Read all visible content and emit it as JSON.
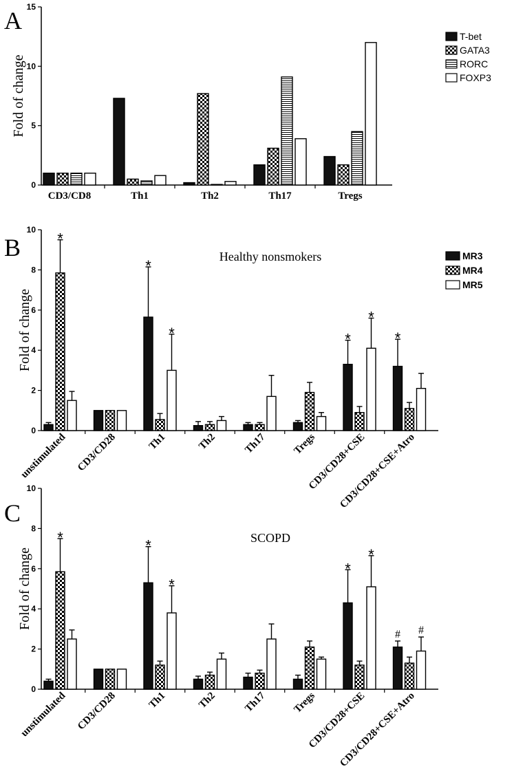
{
  "chart_data": [
    {
      "panel": "A",
      "type": "bar",
      "title": "",
      "ylabel": "Fold of change",
      "ylim": [
        0,
        15
      ],
      "yticks": [
        0,
        5,
        10,
        15
      ],
      "categories": [
        "CD3/CD8",
        "Th1",
        "Th2",
        "Th17",
        "Tregs"
      ],
      "series": [
        {
          "name": "T-bet",
          "pattern": "solid",
          "values": [
            1.0,
            7.3,
            0.2,
            1.7,
            2.4
          ]
        },
        {
          "name": "GATA3",
          "pattern": "check",
          "values": [
            1.0,
            0.5,
            7.7,
            3.1,
            1.7
          ]
        },
        {
          "name": "RORC",
          "pattern": "hlines",
          "values": [
            1.0,
            0.35,
            0.05,
            9.1,
            4.5
          ]
        },
        {
          "name": "FOXP3",
          "pattern": "open",
          "values": [
            1.0,
            0.8,
            0.3,
            3.9,
            12.0
          ]
        }
      ],
      "legend": "right"
    },
    {
      "panel": "B",
      "type": "bar",
      "title": "Healthy nonsmokers",
      "ylabel": "Fold of change",
      "ylim": [
        0,
        10
      ],
      "yticks": [
        0,
        2,
        4,
        6,
        8,
        10
      ],
      "categories": [
        "unstimulated",
        "CD3/CD28",
        "Th1",
        "Th2",
        "Th17",
        "Tregs",
        "CD3/CD28+CSE",
        "CD3/CD28+CSE+Atro"
      ],
      "series": [
        {
          "name": "MR3",
          "pattern": "solid",
          "values": [
            0.3,
            1.0,
            5.65,
            0.25,
            0.3,
            0.4,
            3.3,
            3.2
          ],
          "errors": [
            0.1,
            0,
            2.5,
            0.2,
            0.1,
            0.1,
            1.2,
            1.35
          ],
          "marks": [
            "",
            "",
            "*",
            "",
            "",
            "",
            "*",
            "*"
          ]
        },
        {
          "name": "MR4",
          "pattern": "check",
          "values": [
            7.85,
            1.0,
            0.55,
            0.3,
            0.3,
            1.9,
            0.9,
            1.1
          ],
          "errors": [
            1.65,
            0,
            0.3,
            0.15,
            0.1,
            0.5,
            0.3,
            0.3
          ],
          "marks": [
            "*",
            "",
            "",
            "",
            "",
            "",
            "",
            ""
          ]
        },
        {
          "name": "MR5",
          "pattern": "open",
          "values": [
            1.5,
            1.0,
            3.0,
            0.5,
            1.7,
            0.7,
            4.1,
            2.1
          ],
          "errors": [
            0.45,
            0,
            1.8,
            0.2,
            1.05,
            0.2,
            1.5,
            0.75
          ],
          "marks": [
            "",
            "",
            "*",
            "",
            "",
            "",
            "*",
            ""
          ]
        }
      ],
      "legend": "top-right"
    },
    {
      "panel": "C",
      "type": "bar",
      "title": "SCOPD",
      "ylabel": "Fold of change",
      "ylim": [
        0,
        10
      ],
      "yticks": [
        0,
        2,
        4,
        6,
        8,
        10
      ],
      "categories": [
        "unstimulated",
        "CD3/CD28",
        "Th1",
        "Th2",
        "Th17",
        "Tregs",
        "CD3/CD28+CSE",
        "CD3/CD28+CSE+Atro"
      ],
      "series": [
        {
          "name": "MR3",
          "pattern": "solid",
          "values": [
            0.4,
            1.0,
            5.3,
            0.5,
            0.6,
            0.5,
            4.3,
            2.1
          ],
          "errors": [
            0.1,
            0,
            1.8,
            0.15,
            0.2,
            0.2,
            1.65,
            0.3
          ],
          "marks": [
            "",
            "",
            "*",
            "",
            "",
            "",
            "*",
            "#"
          ]
        },
        {
          "name": "MR4",
          "pattern": "check",
          "values": [
            5.85,
            1.0,
            1.2,
            0.7,
            0.8,
            2.1,
            1.2,
            1.3
          ],
          "errors": [
            1.65,
            0,
            0.2,
            0.15,
            0.15,
            0.3,
            0.2,
            0.3
          ],
          "marks": [
            "*",
            "",
            "",
            "",
            "",
            "",
            "",
            ""
          ]
        },
        {
          "name": "MR5",
          "pattern": "open",
          "values": [
            2.5,
            1.0,
            3.8,
            1.5,
            2.5,
            1.5,
            5.1,
            1.9
          ],
          "errors": [
            0.45,
            0,
            1.35,
            0.3,
            0.75,
            0.1,
            1.55,
            0.7
          ],
          "marks": [
            "",
            "",
            "*",
            "",
            "",
            "",
            "*",
            "#"
          ]
        }
      ],
      "legend": "none"
    }
  ]
}
